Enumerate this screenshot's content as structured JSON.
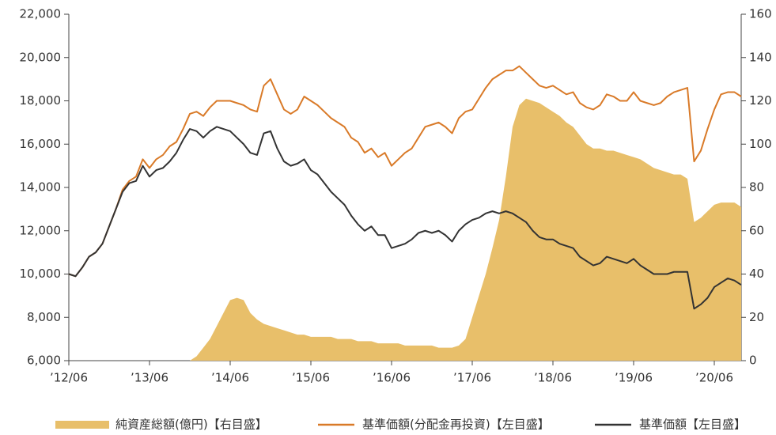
{
  "chart_data": {
    "type": "line",
    "categories": [
      "’12/06",
      null,
      null,
      null,
      null,
      null,
      null,
      null,
      null,
      null,
      null,
      null,
      "’13/06",
      null,
      null,
      null,
      null,
      null,
      null,
      null,
      null,
      null,
      null,
      null,
      "’14/06",
      null,
      null,
      null,
      null,
      null,
      null,
      null,
      null,
      null,
      null,
      null,
      "’15/06",
      null,
      null,
      null,
      null,
      null,
      null,
      null,
      null,
      null,
      null,
      null,
      "’16/06",
      null,
      null,
      null,
      null,
      null,
      null,
      null,
      null,
      null,
      null,
      null,
      "’17/06",
      null,
      null,
      null,
      null,
      null,
      null,
      null,
      null,
      null,
      null,
      null,
      "’18/06",
      null,
      null,
      null,
      null,
      null,
      null,
      null,
      null,
      null,
      null,
      null,
      "’19/06",
      null,
      null,
      null,
      null,
      null,
      null,
      null,
      null,
      null,
      null,
      null,
      "’20/06",
      null,
      null,
      null,
      null
    ],
    "ylim": [
      6000,
      22000
    ],
    "yticks": [
      {
        "value": 6000,
        "label": "6,000"
      },
      {
        "value": 8000,
        "label": "8,000"
      },
      {
        "value": 10000,
        "label": "10,000"
      },
      {
        "value": 12000,
        "label": "12,000"
      },
      {
        "value": 14000,
        "label": "14,000"
      },
      {
        "value": 16000,
        "label": "16,000"
      },
      {
        "value": 18000,
        "label": "18,000"
      },
      {
        "value": 20000,
        "label": "20,000"
      },
      {
        "value": 22000,
        "label": "22,000"
      }
    ],
    "y2lim": [
      0,
      160
    ],
    "y2ticks": [
      0,
      20,
      40,
      60,
      80,
      100,
      120,
      140,
      160
    ],
    "series": [
      {
        "name": "純資産総額(億円)【右目盛】",
        "type": "area",
        "axis": "y2",
        "color": "#e8bf6a",
        "values": [
          0,
          0,
          0,
          0,
          0,
          0,
          0,
          0,
          0,
          0,
          0,
          0,
          0,
          0,
          0,
          0,
          0,
          0,
          0,
          2,
          6,
          10,
          16,
          22,
          28,
          29,
          28,
          22,
          19,
          17,
          16,
          15,
          14,
          13,
          12,
          12,
          11,
          11,
          11,
          11,
          10,
          10,
          10,
          9,
          9,
          9,
          8,
          8,
          8,
          8,
          7,
          7,
          7,
          7,
          7,
          6,
          6,
          6,
          7,
          10,
          20,
          30,
          40,
          52,
          65,
          85,
          108,
          118,
          121,
          120,
          119,
          117,
          115,
          113,
          110,
          108,
          104,
          100,
          98,
          98,
          97,
          97,
          96,
          95,
          94,
          93,
          91,
          89,
          88,
          87,
          86,
          86,
          84,
          64,
          66,
          69,
          72,
          73,
          73,
          73,
          71
        ]
      },
      {
        "name": "基準価額(分配金再投資)【左目盛】",
        "type": "line",
        "color": "#d97a28",
        "values": [
          10000,
          9900,
          10300,
          10800,
          11000,
          11400,
          12200,
          13000,
          13900,
          14300,
          14500,
          15300,
          14900,
          15300,
          15500,
          15900,
          16100,
          16700,
          17400,
          17500,
          17300,
          17700,
          18000,
          18000,
          18000,
          17900,
          17800,
          17600,
          17500,
          18700,
          19000,
          18300,
          17600,
          17400,
          17600,
          18200,
          18000,
          17800,
          17500,
          17200,
          17000,
          16800,
          16300,
          16100,
          15600,
          15800,
          15400,
          15600,
          15000,
          15300,
          15600,
          15800,
          16300,
          16800,
          16900,
          17000,
          16800,
          16500,
          17200,
          17500,
          17600,
          18100,
          18600,
          19000,
          19200,
          19400,
          19400,
          19600,
          19300,
          19000,
          18700,
          18600,
          18700,
          18500,
          18300,
          18400,
          17900,
          17700,
          17600,
          17800,
          18300,
          18200,
          18000,
          18000,
          18400,
          18000,
          17900,
          17800,
          17900,
          18200,
          18400,
          18500,
          18600,
          15200,
          15700,
          16700,
          17600,
          18300,
          18400,
          18400,
          18200
        ]
      },
      {
        "name": "基準価額【左目盛】",
        "type": "line",
        "color": "#333333",
        "values": [
          10000,
          9900,
          10300,
          10800,
          11000,
          11400,
          12200,
          13000,
          13800,
          14200,
          14300,
          15000,
          14500,
          14800,
          14900,
          15200,
          15600,
          16200,
          16700,
          16600,
          16300,
          16600,
          16800,
          16700,
          16600,
          16300,
          16000,
          15600,
          15500,
          16500,
          16600,
          15800,
          15200,
          15000,
          15100,
          15300,
          14800,
          14600,
          14200,
          13800,
          13500,
          13200,
          12700,
          12300,
          12000,
          12200,
          11800,
          11800,
          11200,
          11300,
          11400,
          11600,
          11900,
          12000,
          11900,
          12000,
          11800,
          11500,
          12000,
          12300,
          12500,
          12600,
          12800,
          12900,
          12800,
          12900,
          12800,
          12600,
          12400,
          12000,
          11700,
          11600,
          11600,
          11400,
          11300,
          11200,
          10800,
          10600,
          10400,
          10500,
          10800,
          10700,
          10600,
          10500,
          10700,
          10400,
          10200,
          10000,
          10000,
          10000,
          10100,
          10100,
          10100,
          8400,
          8600,
          8900,
          9400,
          9600,
          9800,
          9700,
          9500
        ]
      }
    ],
    "legend": "bottom"
  }
}
